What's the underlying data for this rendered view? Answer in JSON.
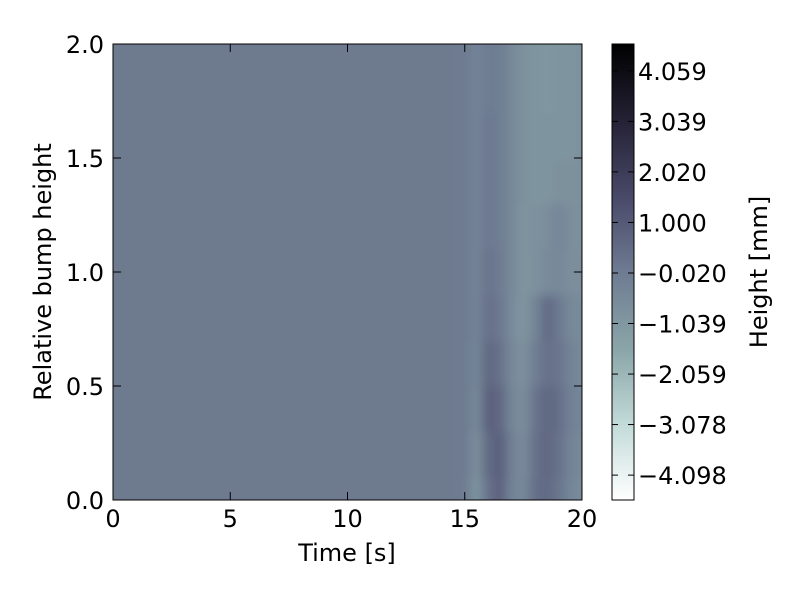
{
  "chart_data": {
    "type": "heatmap",
    "title": "",
    "xlabel": "Time [s]",
    "ylabel": "Relative bump height",
    "xlim": [
      0,
      20
    ],
    "ylim": [
      0,
      2.0
    ],
    "x_ticks": [
      "0",
      "5",
      "10",
      "15",
      "20"
    ],
    "y_ticks": [
      "0.0",
      "0.5",
      "1.0",
      "1.5",
      "2.0"
    ],
    "grid": false,
    "colormap": "bone_r",
    "colorbar": {
      "label": "Height [mm]",
      "range": [
        -4.6,
        4.6
      ],
      "tick_labels": [
        "4.059",
        "3.039",
        "2.020",
        "1.000",
        "−0.020",
        "−1.039",
        "−2.059",
        "−3.078",
        "−4.098"
      ],
      "colors": [
        "#ffffff",
        "#c4dcda",
        "#8aa5a8",
        "#6e7b92",
        "#4a4a6a",
        "#252236",
        "#000000"
      ]
    },
    "description_values": {
      "baseline_height_mm": 0.0,
      "disturbance_start_time_s": 15.0,
      "disturbance_end_time_s": 20.0
    },
    "rows_y": [
      0.0,
      0.2,
      0.4,
      0.6,
      0.8,
      1.0,
      1.2,
      1.4,
      1.6,
      1.8,
      2.0
    ],
    "columns_t": [
      15.0,
      15.5,
      16.0,
      16.5,
      17.0,
      17.5,
      18.0,
      18.5,
      19.0,
      19.5,
      20.0
    ],
    "height_grid_mm": [
      [
        0.0,
        -0.9,
        0.3,
        0.8,
        -0.3,
        -0.5,
        0.4,
        0.5,
        0.2,
        -0.4,
        -0.6
      ],
      [
        0.0,
        -0.7,
        0.5,
        0.9,
        -0.2,
        -0.6,
        0.3,
        0.6,
        0.3,
        -0.3,
        -0.5
      ],
      [
        0.0,
        -0.5,
        0.8,
        0.6,
        -0.4,
        -0.7,
        0.2,
        0.6,
        0.4,
        -0.2,
        -0.4
      ],
      [
        0.0,
        -0.4,
        0.6,
        0.3,
        -0.5,
        -0.8,
        -0.1,
        0.3,
        0.2,
        -0.3,
        -0.5
      ],
      [
        0.0,
        -0.3,
        0.3,
        0.1,
        -0.6,
        -0.9,
        -0.4,
        0.5,
        0.1,
        -0.5,
        -0.6
      ],
      [
        0.0,
        -0.3,
        0.2,
        0.0,
        -0.5,
        -0.9,
        -0.8,
        -0.6,
        -0.5,
        -0.7,
        -0.7
      ],
      [
        0.0,
        -0.3,
        0.1,
        -0.1,
        -0.5,
        -0.9,
        -0.8,
        -0.7,
        -0.4,
        -0.7,
        -0.8
      ],
      [
        0.0,
        -0.3,
        0.1,
        -0.1,
        -0.5,
        -0.8,
        -0.9,
        -0.9,
        -0.8,
        -0.8,
        -0.8
      ],
      [
        0.0,
        -0.3,
        0.1,
        -0.1,
        -0.5,
        -0.8,
        -0.9,
        -0.9,
        -0.9,
        -0.9,
        -0.8
      ],
      [
        0.0,
        -0.3,
        0.0,
        -0.1,
        -0.5,
        -0.8,
        -0.9,
        -1.0,
        -0.9,
        -0.9,
        -0.8
      ],
      [
        0.0,
        -0.3,
        0.0,
        -0.1,
        -0.5,
        -0.8,
        -0.9,
        -1.0,
        -0.9,
        -0.9,
        -0.8
      ]
    ]
  }
}
